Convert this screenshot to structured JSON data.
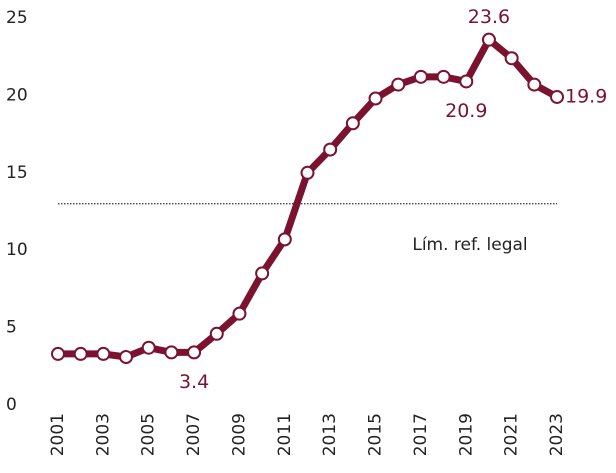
{
  "chart_data": {
    "type": "line",
    "x": [
      2001,
      2002,
      2003,
      2004,
      2005,
      2006,
      2007,
      2008,
      2009,
      2010,
      2011,
      2012,
      2013,
      2014,
      2015,
      2016,
      2017,
      2018,
      2019,
      2020,
      2021,
      2022,
      2023
    ],
    "series": [
      {
        "color": "#7b1230",
        "values": [
          3.3,
          3.3,
          3.3,
          3.1,
          3.7,
          3.4,
          3.4,
          4.6,
          5.9,
          8.5,
          10.7,
          15.0,
          16.5,
          18.2,
          19.8,
          20.7,
          21.2,
          21.2,
          20.9,
          23.6,
          22.4,
          20.7,
          19.9
        ],
        "value_labels": [
          null,
          null,
          null,
          null,
          null,
          null,
          "3.4",
          null,
          null,
          null,
          null,
          null,
          null,
          null,
          null,
          null,
          null,
          null,
          "20.9",
          "23.6",
          null,
          null,
          "19.9"
        ]
      }
    ],
    "xlim": [
      2001,
      2023
    ],
    "xticks": [
      2001,
      2003,
      2005,
      2007,
      2009,
      2011,
      2013,
      2015,
      2017,
      2019,
      2021,
      2023
    ],
    "ylim": [
      0,
      25
    ],
    "yticks": [
      0,
      5,
      10,
      15,
      20,
      25
    ],
    "reference": {
      "value": 13,
      "label": "Lím. ref. legal"
    }
  }
}
